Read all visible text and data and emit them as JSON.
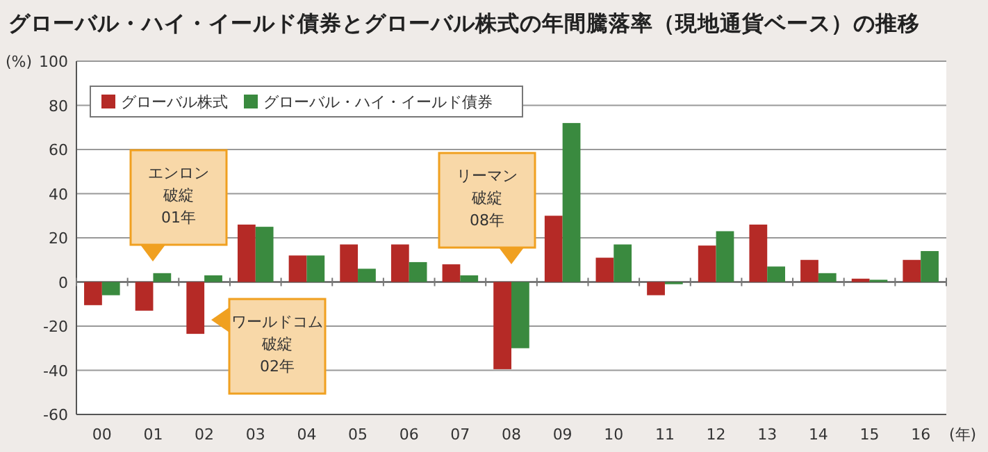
{
  "chart_data": {
    "type": "bar",
    "title": "グローバル・ハイ・イールド債券とグローバル株式の年間騰落率（現地通貨ベース）の推移",
    "ylabel": "(%)",
    "xlabel": "(年)",
    "categories": [
      "00",
      "01",
      "02",
      "03",
      "04",
      "05",
      "06",
      "07",
      "08",
      "09",
      "10",
      "11",
      "12",
      "13",
      "14",
      "15",
      "16"
    ],
    "series": [
      {
        "name": "グローバル株式",
        "color": "#b52a26",
        "values": [
          -10.5,
          -13,
          -23.5,
          26,
          12,
          17,
          17,
          8,
          -39.5,
          30,
          11,
          -6,
          16.5,
          26,
          10,
          1.5,
          10
        ]
      },
      {
        "name": "グローバル・ハイ・イールド債券",
        "color": "#3a8a3f",
        "values": [
          -6,
          4,
          3,
          25,
          12,
          6,
          9,
          3,
          -30,
          72,
          17,
          -1,
          23,
          7,
          4,
          1,
          14
        ]
      }
    ],
    "ylim": [
      -60,
      100
    ],
    "yticks": [
      -60,
      -40,
      -20,
      0,
      20,
      40,
      60,
      80,
      100
    ],
    "grid": "y",
    "legend": "top left",
    "annotations": [
      "エンロン破綻01年",
      "ワールドコム破綻02年",
      "リーマン破綻08年"
    ]
  }
}
